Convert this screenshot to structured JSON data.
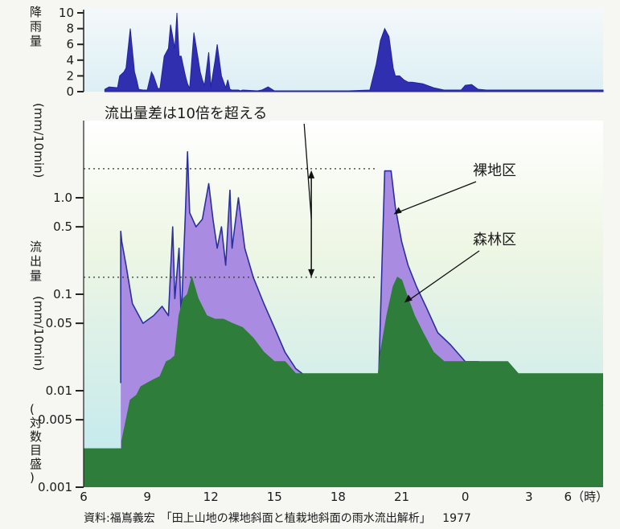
{
  "chart_data": [
    {
      "type": "area",
      "ylabel": "降雨量（mm/10min）",
      "ylim": [
        0,
        10
      ],
      "yticks": [
        "0",
        "2",
        "4",
        "6",
        "8",
        "10"
      ],
      "x": [
        7.0,
        7.2,
        7.6,
        7.7,
        7.9,
        8.0,
        8.2,
        8.4,
        8.5,
        8.6,
        8.8,
        9.0,
        9.2,
        9.3,
        9.5,
        9.6,
        9.8,
        10.0,
        10.1,
        10.3,
        10.4,
        10.5,
        10.6,
        10.8,
        10.9,
        11.0,
        11.2,
        11.5,
        11.6,
        11.7,
        11.9,
        12.0,
        12.2,
        12.3,
        12.5,
        12.7,
        12.8,
        12.9,
        13.0,
        13.3,
        13.4,
        13.5,
        14.2,
        14.4,
        14.7,
        15.0,
        15.3,
        15.5,
        16.0,
        17.0,
        18.5,
        19.5,
        19.8,
        20.0,
        20.2,
        20.4,
        20.6,
        20.7,
        20.9,
        21.1,
        21.3,
        21.5,
        22.0,
        22.5,
        23.0,
        23.8,
        24.0,
        24.3,
        24.6,
        25.0,
        27.0,
        30.5
      ],
      "rainfall": [
        0.3,
        0.6,
        0.5,
        2.0,
        2.5,
        3.0,
        8.0,
        2.5,
        1.5,
        0.3,
        0.2,
        0.2,
        2.5,
        2.0,
        0.4,
        0.4,
        4.5,
        5.5,
        8.5,
        5.5,
        10.0,
        4.5,
        4.5,
        2.0,
        1.0,
        0.4,
        7.5,
        2.5,
        1.5,
        0.8,
        5.0,
        0.6,
        4.0,
        6.0,
        2.0,
        0.5,
        1.5,
        0.3,
        0.2,
        0.2,
        0.1,
        0.2,
        0.1,
        0.2,
        0.6,
        0.1,
        0.1,
        0.1,
        0.1,
        0.1,
        0.1,
        0.2,
        3.5,
        6.5,
        8.0,
        7.0,
        3.0,
        2.0,
        2.0,
        1.5,
        1.2,
        1.2,
        1.0,
        0.5,
        0.2,
        0.2,
        0.8,
        0.9,
        0.3,
        0.2,
        0.2,
        0.2
      ]
    },
    {
      "type": "area",
      "ylabel": "流出量（mm/10min）（対数目盛）",
      "yscale": "log",
      "ylim": [
        0.001,
        2
      ],
      "yticks": [
        "0.001",
        "0.005",
        "0.01",
        "0.05",
        "0.1",
        "0.5",
        "1.0"
      ],
      "xticks": [
        "6",
        "9",
        "12",
        "15",
        "18",
        "21",
        "0",
        "3",
        "6（時）"
      ],
      "xlim": [
        6,
        30.5
      ],
      "series": [
        {
          "name": "裸地区",
          "color": "#2b2fa0",
          "fill": "#a98ce2",
          "x": [
            6.0,
            7.75,
            7.75,
            7.8,
            8.0,
            8.3,
            8.8,
            9.3,
            9.7,
            10.0,
            10.2,
            10.3,
            10.5,
            10.6,
            10.8,
            10.9,
            11.0,
            11.3,
            11.6,
            11.9,
            12.1,
            12.3,
            12.5,
            12.7,
            12.9,
            13.0,
            13.3,
            13.6,
            14.0,
            14.5,
            15.0,
            15.5,
            16.0,
            16.5,
            17.0,
            17.5,
            18.0,
            18.5,
            19.0,
            19.5,
            19.8,
            19.85,
            20.2,
            20.5,
            20.7,
            21.0,
            21.3,
            21.7,
            22.2,
            22.7,
            23.3,
            24.0,
            24.6,
            25.2,
            25.8,
            26.5,
            27.2,
            28.0,
            28.5,
            29.0,
            29.5,
            30.5
          ],
          "y": [
            null,
            0.012,
            0.45,
            0.35,
            0.2,
            0.08,
            0.05,
            0.06,
            0.075,
            0.06,
            0.5,
            0.09,
            0.3,
            0.055,
            0.7,
            3.0,
            0.7,
            0.5,
            0.6,
            1.4,
            0.6,
            0.3,
            0.5,
            0.2,
            1.2,
            0.3,
            1.0,
            0.3,
            0.15,
            0.08,
            0.045,
            0.025,
            0.017,
            0.014,
            0.012,
            0.012,
            0.01,
            0.01,
            0.01,
            0.008,
            0.006,
            0.0045,
            1.9,
            1.9,
            0.8,
            0.35,
            0.2,
            0.12,
            0.07,
            0.04,
            0.03,
            0.02,
            0.02,
            0.018,
            0.016,
            0.014,
            0.012,
            0.012,
            0.01,
            0.01,
            0.01,
            0.007
          ]
        },
        {
          "name": "森林区",
          "color": "#2e7d3b",
          "fill": "#2e7d3b",
          "x": [
            6.0,
            7.8,
            7.8,
            8.2,
            8.5,
            8.7,
            9.0,
            9.3,
            9.6,
            9.9,
            10.1,
            10.3,
            10.5,
            10.7,
            10.9,
            11.1,
            11.4,
            11.8,
            12.2,
            12.6,
            13.0,
            13.5,
            14.0,
            14.5,
            15.0,
            15.5,
            16.0,
            16.5,
            17.0,
            19.0,
            19.6,
            19.9,
            20.0,
            20.3,
            20.6,
            20.8,
            21.0,
            21.3,
            21.6,
            22.0,
            22.5,
            23.0,
            23.5,
            24.0,
            24.5,
            25.0,
            25.5,
            26.0,
            26.5,
            27.0,
            28.0,
            29.0,
            30.5
          ],
          "y": [
            0.0025,
            0.0025,
            0.003,
            0.008,
            0.009,
            0.011,
            0.012,
            0.013,
            0.014,
            0.02,
            0.021,
            0.023,
            0.06,
            0.09,
            0.1,
            0.15,
            0.09,
            0.06,
            0.055,
            0.055,
            0.05,
            0.045,
            0.035,
            0.025,
            0.02,
            0.02,
            0.015,
            0.015,
            0.015,
            0.015,
            0.015,
            0.015,
            0.025,
            0.06,
            0.12,
            0.15,
            0.14,
            0.09,
            0.06,
            0.04,
            0.025,
            0.02,
            0.02,
            0.02,
            0.02,
            0.02,
            0.02,
            0.02,
            0.015,
            0.015,
            0.015,
            0.015,
            0.015
          ]
        }
      ],
      "annotations": {
        "note": "流出量差は10倍を超える",
        "bare_label": "裸地区",
        "forest_label": "森林区"
      }
    }
  ],
  "source": {
    "citation": "資料:福嶌義宏　「田上山地の裸地斜面と植栽地斜面の雨水流出解析」",
    "year": "1977"
  }
}
